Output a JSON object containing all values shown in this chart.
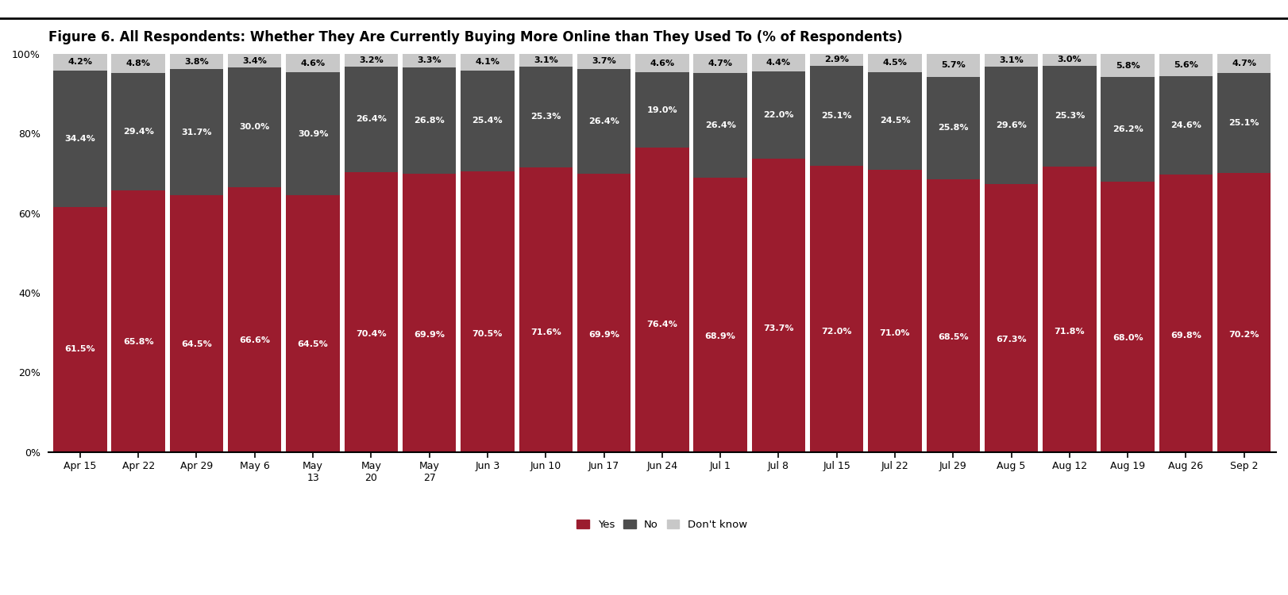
{
  "title": "Figure 6. All Respondents: Whether They Are Currently Buying More Online than They Used To (% of Respondents)",
  "categories": [
    "Apr 15",
    "Apr 22",
    "Apr 29",
    "May 6",
    "May\n13",
    "May\n20",
    "May\n27",
    "Jun 3",
    "Jun 10",
    "Jun 17",
    "Jun 24",
    "Jul 1",
    "Jul 8",
    "Jul 15",
    "Jul 22",
    "Jul 29",
    "Aug 5",
    "Aug 12",
    "Aug 19",
    "Aug 26",
    "Sep 2"
  ],
  "yes": [
    61.5,
    65.8,
    64.5,
    66.6,
    64.5,
    70.4,
    69.9,
    70.5,
    71.6,
    69.9,
    76.4,
    68.9,
    73.7,
    72.0,
    71.0,
    68.5,
    67.3,
    71.8,
    68.0,
    69.8,
    70.2
  ],
  "no": [
    34.4,
    29.4,
    31.7,
    30.0,
    30.9,
    26.4,
    26.8,
    25.4,
    25.3,
    26.4,
    19.0,
    26.4,
    22.0,
    25.1,
    24.5,
    25.8,
    29.6,
    25.3,
    26.2,
    24.6,
    25.1
  ],
  "dk": [
    4.2,
    4.8,
    3.8,
    3.4,
    4.6,
    3.2,
    3.3,
    4.1,
    3.1,
    3.7,
    4.6,
    4.7,
    4.4,
    2.9,
    4.5,
    5.7,
    3.1,
    3.0,
    5.8,
    5.6,
    4.7
  ],
  "yes_color": "#9B1C2E",
  "no_color": "#4D4D4D",
  "dk_color": "#C8C8C8",
  "text_color_yes": "#FFFFFF",
  "text_color_no": "#FFFFFF",
  "text_color_dk": "#000000",
  "background_color": "#FFFFFF",
  "title_fontsize": 12,
  "label_fontsize": 8.0,
  "tick_fontsize": 9
}
